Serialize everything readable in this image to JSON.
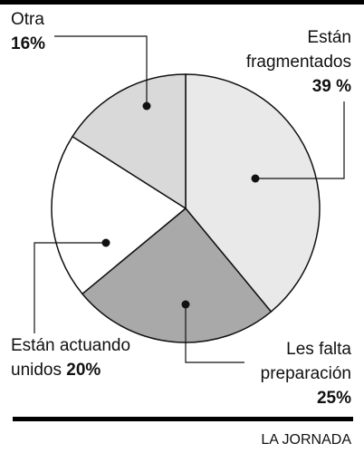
{
  "chart_data": {
    "type": "pie",
    "categories": [
      "Están fragmentados",
      "Les falta preparación",
      "Están actuando unidos",
      "Otra"
    ],
    "values": [
      39,
      25,
      20,
      16
    ],
    "value_labels": [
      "39 %",
      "25%",
      "20%",
      "16%"
    ],
    "colors": [
      "#e9e9e9",
      "#a9a9a9",
      "#ffffff",
      "#d9d9d9"
    ],
    "source": "LA JORNADA"
  }
}
